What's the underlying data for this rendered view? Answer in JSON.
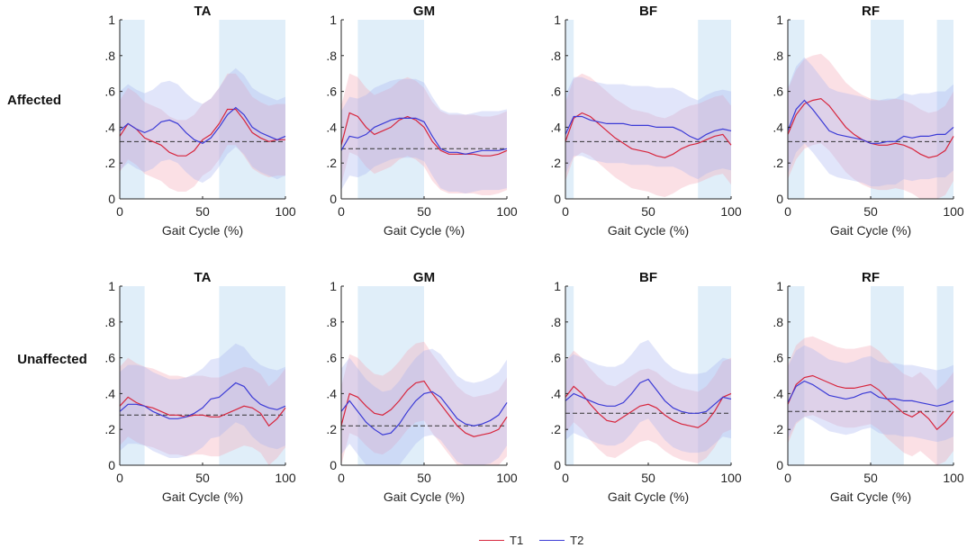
{
  "figure": {
    "row_labels": [
      "Affected",
      "Unaffected"
    ],
    "legend": [
      {
        "label": "T1",
        "color": "#d7263d"
      },
      {
        "label": "T2",
        "color": "#3b3bd6"
      }
    ],
    "colors": {
      "t1_line": "#d7263d",
      "t1_band": "#f4a6b4",
      "t2_line": "#3b3bd6",
      "t2_band": "#aab4f2",
      "phase_band": "#d6e8f7",
      "threshold": "#333333"
    }
  },
  "chart_data": [
    {
      "type": "line",
      "row": "Affected",
      "title": "TA",
      "xlabel": "Gait Cycle (%)",
      "ylabel": "",
      "xlim": [
        0,
        100
      ],
      "ylim": [
        0,
        1
      ],
      "xticks": [
        0,
        50,
        100
      ],
      "yticks": [
        0,
        0.2,
        0.4,
        0.6,
        0.8,
        1
      ],
      "threshold": 0.32,
      "shaded_x": [
        [
          0,
          15
        ],
        [
          60,
          100
        ]
      ],
      "x": [
        0,
        5,
        10,
        15,
        20,
        25,
        30,
        35,
        40,
        45,
        50,
        55,
        60,
        65,
        70,
        75,
        80,
        85,
        90,
        95,
        100
      ],
      "series": [
        {
          "name": "T1",
          "mean": [
            0.35,
            0.42,
            0.39,
            0.34,
            0.32,
            0.3,
            0.26,
            0.24,
            0.24,
            0.27,
            0.33,
            0.36,
            0.42,
            0.5,
            0.5,
            0.44,
            0.37,
            0.34,
            0.32,
            0.33,
            0.33
          ],
          "band": 0.2
        },
        {
          "name": "T2",
          "mean": [
            0.38,
            0.42,
            0.39,
            0.37,
            0.39,
            0.43,
            0.44,
            0.42,
            0.37,
            0.33,
            0.31,
            0.34,
            0.4,
            0.47,
            0.51,
            0.47,
            0.4,
            0.37,
            0.35,
            0.33,
            0.35
          ],
          "band": 0.22
        }
      ]
    },
    {
      "type": "line",
      "row": "Affected",
      "title": "GM",
      "xlabel": "Gait Cycle (%)",
      "ylabel": "",
      "xlim": [
        0,
        100
      ],
      "ylim": [
        0,
        1
      ],
      "xticks": [
        0,
        50,
        100
      ],
      "yticks": [
        0,
        0.2,
        0.4,
        0.6,
        0.8,
        1
      ],
      "threshold": 0.28,
      "shaded_x": [
        [
          10,
          50
        ]
      ],
      "x": [
        0,
        5,
        10,
        15,
        20,
        25,
        30,
        35,
        40,
        45,
        50,
        55,
        60,
        65,
        70,
        75,
        80,
        85,
        90,
        95,
        100
      ],
      "series": [
        {
          "name": "T1",
          "mean": [
            0.3,
            0.48,
            0.46,
            0.4,
            0.36,
            0.38,
            0.4,
            0.44,
            0.46,
            0.44,
            0.4,
            0.32,
            0.27,
            0.25,
            0.25,
            0.25,
            0.25,
            0.24,
            0.24,
            0.25,
            0.27
          ],
          "band": 0.22
        },
        {
          "name": "T2",
          "mean": [
            0.27,
            0.35,
            0.34,
            0.36,
            0.4,
            0.42,
            0.44,
            0.45,
            0.45,
            0.45,
            0.43,
            0.35,
            0.28,
            0.26,
            0.26,
            0.25,
            0.26,
            0.27,
            0.27,
            0.27,
            0.28
          ],
          "band": 0.22
        }
      ]
    },
    {
      "type": "line",
      "row": "Affected",
      "title": "BF",
      "xlabel": "Gait Cycle (%)",
      "ylabel": "",
      "xlim": [
        0,
        100
      ],
      "ylim": [
        0,
        1
      ],
      "xticks": [
        0,
        50,
        100
      ],
      "yticks": [
        0,
        0.2,
        0.4,
        0.6,
        0.8,
        1
      ],
      "threshold": 0.32,
      "shaded_x": [
        [
          0,
          5
        ],
        [
          80,
          100
        ]
      ],
      "x": [
        0,
        5,
        10,
        15,
        20,
        25,
        30,
        35,
        40,
        45,
        50,
        55,
        60,
        65,
        70,
        75,
        80,
        85,
        90,
        95,
        100
      ],
      "series": [
        {
          "name": "T1",
          "mean": [
            0.32,
            0.45,
            0.48,
            0.46,
            0.42,
            0.38,
            0.34,
            0.31,
            0.28,
            0.27,
            0.26,
            0.24,
            0.23,
            0.25,
            0.28,
            0.3,
            0.31,
            0.33,
            0.35,
            0.36,
            0.3
          ],
          "band": 0.22
        },
        {
          "name": "T2",
          "mean": [
            0.36,
            0.46,
            0.46,
            0.44,
            0.43,
            0.42,
            0.42,
            0.42,
            0.41,
            0.41,
            0.41,
            0.4,
            0.4,
            0.4,
            0.38,
            0.35,
            0.33,
            0.36,
            0.38,
            0.39,
            0.38
          ],
          "band": 0.22
        }
      ]
    },
    {
      "type": "line",
      "row": "Affected",
      "title": "RF",
      "xlabel": "Gait Cycle (%)",
      "ylabel": "",
      "xlim": [
        0,
        100
      ],
      "ylim": [
        0,
        1
      ],
      "xticks": [
        0,
        50,
        100
      ],
      "yticks": [
        0,
        0.2,
        0.4,
        0.6,
        0.8,
        1
      ],
      "threshold": 0.32,
      "shaded_x": [
        [
          0,
          10
        ],
        [
          50,
          70
        ],
        [
          90,
          100
        ]
      ],
      "x": [
        0,
        5,
        10,
        15,
        20,
        25,
        30,
        35,
        40,
        45,
        50,
        55,
        60,
        65,
        70,
        75,
        80,
        85,
        90,
        95,
        100
      ],
      "series": [
        {
          "name": "T1",
          "mean": [
            0.36,
            0.47,
            0.53,
            0.55,
            0.56,
            0.52,
            0.46,
            0.4,
            0.36,
            0.33,
            0.31,
            0.3,
            0.3,
            0.31,
            0.3,
            0.28,
            0.25,
            0.23,
            0.24,
            0.27,
            0.35
          ],
          "band": 0.25
        },
        {
          "name": "T2",
          "mean": [
            0.38,
            0.5,
            0.55,
            0.5,
            0.44,
            0.38,
            0.36,
            0.35,
            0.34,
            0.33,
            0.31,
            0.31,
            0.32,
            0.32,
            0.35,
            0.34,
            0.35,
            0.35,
            0.36,
            0.36,
            0.4
          ],
          "band": 0.24
        }
      ]
    },
    {
      "type": "line",
      "row": "Unaffected",
      "title": "TA",
      "xlabel": "Gait Cycle (%)",
      "ylabel": "",
      "xlim": [
        0,
        100
      ],
      "ylim": [
        0,
        1
      ],
      "xticks": [
        0,
        50,
        100
      ],
      "yticks": [
        0,
        0.2,
        0.4,
        0.6,
        0.8,
        1
      ],
      "threshold": 0.28,
      "shaded_x": [
        [
          0,
          15
        ],
        [
          60,
          100
        ]
      ],
      "x": [
        0,
        5,
        10,
        15,
        20,
        25,
        30,
        35,
        40,
        45,
        50,
        55,
        60,
        65,
        70,
        75,
        80,
        85,
        90,
        95,
        100
      ],
      "series": [
        {
          "name": "T1",
          "mean": [
            0.33,
            0.38,
            0.35,
            0.33,
            0.32,
            0.3,
            0.28,
            0.28,
            0.27,
            0.28,
            0.28,
            0.27,
            0.27,
            0.29,
            0.31,
            0.33,
            0.32,
            0.29,
            0.22,
            0.26,
            0.32
          ],
          "band": 0.22
        },
        {
          "name": "T2",
          "mean": [
            0.3,
            0.34,
            0.34,
            0.33,
            0.3,
            0.28,
            0.26,
            0.26,
            0.27,
            0.29,
            0.32,
            0.37,
            0.38,
            0.42,
            0.46,
            0.44,
            0.38,
            0.34,
            0.32,
            0.31,
            0.33
          ],
          "band": 0.22
        }
      ]
    },
    {
      "type": "line",
      "row": "Unaffected",
      "title": "GM",
      "xlabel": "Gait Cycle (%)",
      "ylabel": "",
      "xlim": [
        0,
        100
      ],
      "ylim": [
        0,
        1
      ],
      "xticks": [
        0,
        50,
        100
      ],
      "yticks": [
        0,
        0.2,
        0.4,
        0.6,
        0.8,
        1
      ],
      "threshold": 0.22,
      "shaded_x": [
        [
          10,
          50
        ]
      ],
      "x": [
        0,
        5,
        10,
        15,
        20,
        25,
        30,
        35,
        40,
        45,
        50,
        55,
        60,
        65,
        70,
        75,
        80,
        85,
        90,
        95,
        100
      ],
      "series": [
        {
          "name": "T1",
          "mean": [
            0.22,
            0.4,
            0.38,
            0.33,
            0.29,
            0.28,
            0.31,
            0.36,
            0.42,
            0.46,
            0.47,
            0.4,
            0.34,
            0.28,
            0.22,
            0.18,
            0.16,
            0.17,
            0.18,
            0.2,
            0.27
          ],
          "band": 0.22
        },
        {
          "name": "T2",
          "mean": [
            0.3,
            0.36,
            0.3,
            0.24,
            0.2,
            0.17,
            0.18,
            0.23,
            0.3,
            0.36,
            0.4,
            0.41,
            0.38,
            0.32,
            0.26,
            0.23,
            0.22,
            0.23,
            0.25,
            0.28,
            0.35
          ],
          "band": 0.24
        }
      ]
    },
    {
      "type": "line",
      "row": "Unaffected",
      "title": "BF",
      "xlabel": "Gait Cycle (%)",
      "ylabel": "",
      "xlim": [
        0,
        100
      ],
      "ylim": [
        0,
        1
      ],
      "xticks": [
        0,
        50,
        100
      ],
      "yticks": [
        0,
        0.2,
        0.4,
        0.6,
        0.8,
        1
      ],
      "threshold": 0.29,
      "shaded_x": [
        [
          0,
          5
        ],
        [
          80,
          100
        ]
      ],
      "x": [
        0,
        5,
        10,
        15,
        20,
        25,
        30,
        35,
        40,
        45,
        50,
        55,
        60,
        65,
        70,
        75,
        80,
        85,
        90,
        95,
        100
      ],
      "series": [
        {
          "name": "T1",
          "mean": [
            0.38,
            0.44,
            0.4,
            0.34,
            0.29,
            0.25,
            0.24,
            0.27,
            0.3,
            0.33,
            0.34,
            0.32,
            0.28,
            0.25,
            0.23,
            0.22,
            0.21,
            0.24,
            0.3,
            0.38,
            0.4
          ],
          "band": 0.2
        },
        {
          "name": "T2",
          "mean": [
            0.36,
            0.4,
            0.38,
            0.36,
            0.34,
            0.33,
            0.33,
            0.35,
            0.4,
            0.46,
            0.48,
            0.42,
            0.36,
            0.32,
            0.3,
            0.29,
            0.29,
            0.3,
            0.34,
            0.38,
            0.37
          ],
          "band": 0.22
        }
      ]
    },
    {
      "type": "line",
      "row": "Unaffected",
      "title": "RF",
      "xlabel": "Gait Cycle (%)",
      "ylabel": "",
      "xlim": [
        0,
        100
      ],
      "ylim": [
        0,
        1
      ],
      "xticks": [
        0,
        50,
        100
      ],
      "yticks": [
        0,
        0.2,
        0.4,
        0.6,
        0.8,
        1
      ],
      "threshold": 0.3,
      "shaded_x": [
        [
          0,
          10
        ],
        [
          50,
          70
        ],
        [
          90,
          100
        ]
      ],
      "x": [
        0,
        5,
        10,
        15,
        20,
        25,
        30,
        35,
        40,
        45,
        50,
        55,
        60,
        65,
        70,
        75,
        80,
        85,
        90,
        95,
        100
      ],
      "series": [
        {
          "name": "T1",
          "mean": [
            0.34,
            0.45,
            0.49,
            0.5,
            0.48,
            0.46,
            0.44,
            0.43,
            0.43,
            0.44,
            0.45,
            0.42,
            0.37,
            0.33,
            0.29,
            0.27,
            0.3,
            0.26,
            0.2,
            0.24,
            0.3
          ],
          "band": 0.22
        },
        {
          "name": "T2",
          "mean": [
            0.35,
            0.44,
            0.47,
            0.45,
            0.42,
            0.39,
            0.38,
            0.37,
            0.38,
            0.4,
            0.41,
            0.38,
            0.37,
            0.37,
            0.36,
            0.36,
            0.35,
            0.34,
            0.33,
            0.34,
            0.36
          ],
          "band": 0.2
        }
      ]
    }
  ]
}
